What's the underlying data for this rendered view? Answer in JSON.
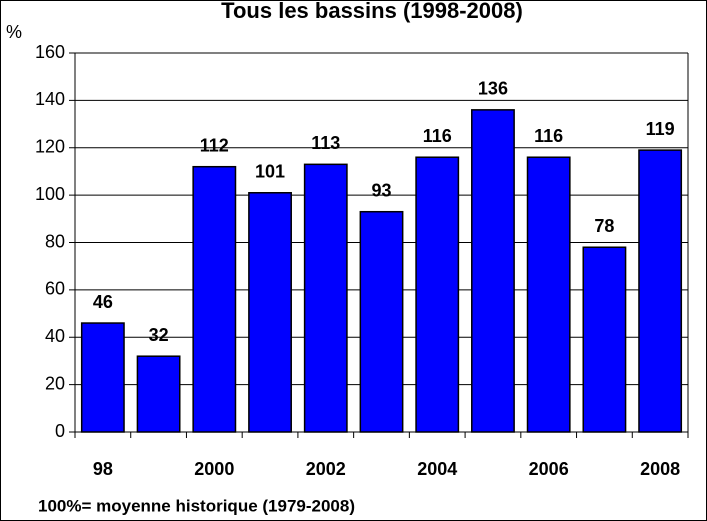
{
  "chart_data": {
    "type": "bar",
    "title": "Tous les bassins (1998-2008)",
    "y_label": "%",
    "footnote": "100%= moyenne historique (1979-2008)",
    "categories": [
      "98",
      null,
      "2000",
      null,
      "2002",
      null,
      "2004",
      null,
      "2006",
      null,
      "2008"
    ],
    "values": [
      46,
      32,
      112,
      101,
      113,
      93,
      116,
      136,
      116,
      78,
      119
    ],
    "color": "#0000ff",
    "ylim": [
      0,
      160
    ],
    "yticks": [
      0,
      20,
      40,
      60,
      80,
      100,
      120,
      140,
      160
    ],
    "grid": true
  }
}
